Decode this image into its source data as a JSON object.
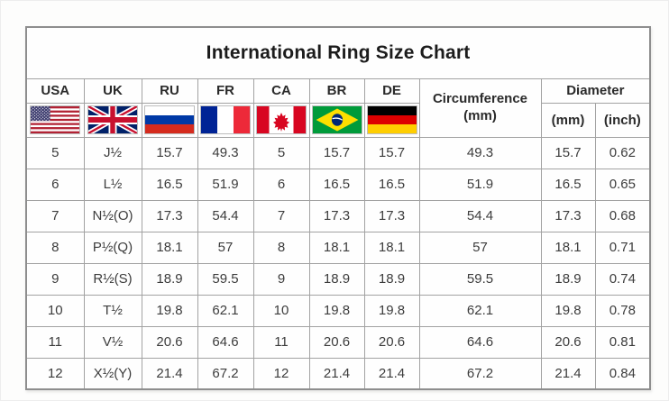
{
  "chart_data": {
    "type": "table",
    "title": "International Ring Size Chart",
    "header": {
      "country_columns": [
        {
          "code": "USA",
          "flag_icon": "usa-flag-icon"
        },
        {
          "code": "UK",
          "flag_icon": "uk-flag-icon"
        },
        {
          "code": "RU",
          "flag_icon": "russia-flag-icon"
        },
        {
          "code": "FR",
          "flag_icon": "france-flag-icon"
        },
        {
          "code": "CA",
          "flag_icon": "canada-flag-icon"
        },
        {
          "code": "BR",
          "flag_icon": "brazil-flag-icon"
        },
        {
          "code": "DE",
          "flag_icon": "germany-flag-icon"
        }
      ],
      "circumference": {
        "label": "Circumference",
        "unit": "(mm)"
      },
      "diameter": {
        "label": "Diameter",
        "units": [
          "(mm)",
          "(inch)"
        ]
      }
    },
    "columns_flat": [
      "USA",
      "UK",
      "RU",
      "FR",
      "CA",
      "BR",
      "DE",
      "Circumference (mm)",
      "Diameter (mm)",
      "Diameter (inch)"
    ],
    "rows": [
      [
        "5",
        "J½",
        "15.7",
        "49.3",
        "5",
        "15.7",
        "15.7",
        "49.3",
        "15.7",
        "0.62"
      ],
      [
        "6",
        "L½",
        "16.5",
        "51.9",
        "6",
        "16.5",
        "16.5",
        "51.9",
        "16.5",
        "0.65"
      ],
      [
        "7",
        "N½(O)",
        "17.3",
        "54.4",
        "7",
        "17.3",
        "17.3",
        "54.4",
        "17.3",
        "0.68"
      ],
      [
        "8",
        "P½(Q)",
        "18.1",
        "57",
        "8",
        "18.1",
        "18.1",
        "57",
        "18.1",
        "0.71"
      ],
      [
        "9",
        "R½(S)",
        "18.9",
        "59.5",
        "9",
        "18.9",
        "18.9",
        "59.5",
        "18.9",
        "0.74"
      ],
      [
        "10",
        "T½",
        "19.8",
        "62.1",
        "10",
        "19.8",
        "19.8",
        "62.1",
        "19.8",
        "0.78"
      ],
      [
        "11",
        "V½",
        "20.6",
        "64.6",
        "11",
        "20.6",
        "20.6",
        "64.6",
        "20.6",
        "0.81"
      ],
      [
        "12",
        "X½(Y)",
        "21.4",
        "67.2",
        "12",
        "21.4",
        "21.4",
        "67.2",
        "21.4",
        "0.84"
      ]
    ]
  },
  "colors": {
    "grid_border": "#a2a2a2",
    "outer_border": "#8e8e8e",
    "text": "#3c3c3c",
    "title_text": "#1c1c1c",
    "flag_palette": {
      "usa": [
        "#B22234",
        "#FFFFFF",
        "#3C3B6E"
      ],
      "uk": [
        "#012169",
        "#FFFFFF",
        "#C8102E"
      ],
      "russia": [
        "#FFFFFF",
        "#0039A6",
        "#D52B1E"
      ],
      "france": [
        "#002395",
        "#FFFFFF",
        "#ED2939"
      ],
      "canada": [
        "#D80621",
        "#FFFFFF"
      ],
      "brazil": [
        "#009B3A",
        "#FEDF00",
        "#002776"
      ],
      "germany": [
        "#000000",
        "#DD0000",
        "#FFCE00"
      ]
    }
  }
}
